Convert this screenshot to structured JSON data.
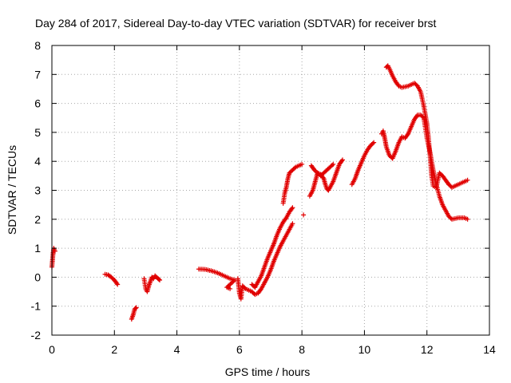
{
  "chart_data": {
    "type": "scatter",
    "title": "Day 284 of 2017, Sidereal Day-to-day VTEC variation (SDTVAR) for receiver brst",
    "xlabel": "GPS time / hours",
    "ylabel": "SDTVAR / TECUs",
    "xlim": [
      0,
      14
    ],
    "ylim": [
      -2,
      8
    ],
    "xticks": [
      "0",
      "2",
      "4",
      "6",
      "8",
      "10",
      "12",
      "14"
    ],
    "yticks": [
      "-2",
      "-1",
      "0",
      "1",
      "2",
      "3",
      "4",
      "5",
      "6",
      "7",
      "8"
    ],
    "grid": true,
    "grid_style": "dotted",
    "marker": "+",
    "color": "#e00000",
    "series": [
      {
        "segments": [
          [
            [
              0.0,
              0.35
            ],
            [
              0.02,
              0.6
            ],
            [
              0.04,
              0.85
            ],
            [
              0.06,
              1.0
            ],
            [
              0.08,
              0.95
            ],
            [
              0.1,
              0.9
            ]
          ],
          [
            [
              1.7,
              0.1
            ],
            [
              1.8,
              0.08
            ],
            [
              1.9,
              0.0
            ],
            [
              2.0,
              -0.1
            ],
            [
              2.1,
              -0.25
            ]
          ],
          [
            [
              2.55,
              -1.45
            ],
            [
              2.6,
              -1.3
            ],
            [
              2.65,
              -1.1
            ],
            [
              2.7,
              -1.05
            ]
          ],
          [
            [
              2.95,
              -0.05
            ],
            [
              3.0,
              -0.4
            ],
            [
              3.05,
              -0.5
            ],
            [
              3.1,
              -0.3
            ],
            [
              3.15,
              -0.15
            ],
            [
              3.2,
              0.0
            ],
            [
              3.25,
              -0.05
            ],
            [
              3.3,
              0.05
            ],
            [
              3.4,
              -0.05
            ],
            [
              3.45,
              -0.1
            ]
          ],
          [
            [
              4.7,
              0.28
            ],
            [
              4.9,
              0.27
            ],
            [
              5.1,
              0.22
            ],
            [
              5.3,
              0.15
            ],
            [
              5.5,
              0.05
            ],
            [
              5.7,
              -0.05
            ],
            [
              5.85,
              -0.1
            ],
            [
              5.6,
              -0.35
            ],
            [
              5.7,
              -0.4
            ]
          ],
          [
            [
              5.95,
              -0.05
            ],
            [
              6.0,
              -0.55
            ],
            [
              6.05,
              -0.75
            ],
            [
              6.1,
              -0.3
            ],
            [
              6.2,
              -0.4
            ],
            [
              6.3,
              -0.45
            ],
            [
              6.4,
              -0.5
            ],
            [
              6.5,
              -0.6
            ],
            [
              6.6,
              -0.55
            ],
            [
              6.7,
              -0.4
            ],
            [
              6.8,
              -0.2
            ],
            [
              6.9,
              0.0
            ],
            [
              7.0,
              0.25
            ],
            [
              7.1,
              0.55
            ],
            [
              7.2,
              0.8
            ],
            [
              7.3,
              1.05
            ],
            [
              7.4,
              1.25
            ],
            [
              7.5,
              1.45
            ],
            [
              7.6,
              1.65
            ],
            [
              7.7,
              1.85
            ]
          ],
          [
            [
              6.4,
              -0.25
            ],
            [
              6.5,
              -0.35
            ],
            [
              6.6,
              -0.15
            ],
            [
              6.7,
              0.05
            ],
            [
              6.8,
              0.35
            ],
            [
              6.9,
              0.65
            ],
            [
              7.0,
              0.9
            ],
            [
              7.1,
              1.15
            ],
            [
              7.2,
              1.45
            ],
            [
              7.3,
              1.7
            ],
            [
              7.4,
              1.9
            ],
            [
              7.5,
              2.05
            ],
            [
              7.6,
              2.25
            ],
            [
              7.7,
              2.4
            ]
          ],
          [
            [
              7.4,
              2.55
            ],
            [
              7.45,
              2.9
            ],
            [
              7.5,
              3.1
            ],
            [
              7.55,
              3.4
            ],
            [
              7.6,
              3.6
            ],
            [
              7.7,
              3.7
            ],
            [
              7.8,
              3.8
            ],
            [
              7.9,
              3.85
            ],
            [
              8.0,
              3.9
            ]
          ],
          [
            [
              8.05,
              2.15
            ]
          ],
          [
            [
              8.25,
              2.8
            ],
            [
              8.3,
              2.9
            ],
            [
              8.35,
              3.0
            ],
            [
              8.4,
              3.2
            ],
            [
              8.45,
              3.4
            ],
            [
              8.5,
              3.6
            ],
            [
              8.6,
              3.55
            ],
            [
              8.7,
              3.4
            ],
            [
              8.75,
              3.2
            ],
            [
              8.8,
              3.05
            ],
            [
              8.85,
              3.0
            ],
            [
              8.9,
              3.1
            ],
            [
              9.0,
              3.3
            ],
            [
              9.1,
              3.6
            ],
            [
              9.2,
              3.9
            ],
            [
              9.3,
              4.05
            ]
          ],
          [
            [
              8.3,
              3.85
            ],
            [
              8.4,
              3.7
            ],
            [
              8.6,
              3.5
            ],
            [
              8.7,
              3.6
            ],
            [
              8.8,
              3.7
            ],
            [
              8.9,
              3.8
            ],
            [
              9.0,
              3.9
            ]
          ],
          [
            [
              9.6,
              3.2
            ],
            [
              9.7,
              3.4
            ],
            [
              9.8,
              3.7
            ],
            [
              9.9,
              3.95
            ],
            [
              10.0,
              4.2
            ],
            [
              10.1,
              4.4
            ],
            [
              10.2,
              4.55
            ],
            [
              10.3,
              4.65
            ]
          ],
          [
            [
              10.55,
              4.95
            ],
            [
              10.6,
              5.05
            ],
            [
              10.65,
              4.8
            ],
            [
              10.7,
              4.5
            ],
            [
              10.8,
              4.2
            ],
            [
              10.9,
              4.1
            ],
            [
              11.0,
              4.35
            ],
            [
              11.1,
              4.65
            ],
            [
              11.2,
              4.85
            ],
            [
              11.3,
              4.8
            ],
            [
              11.4,
              4.95
            ],
            [
              11.5,
              5.2
            ],
            [
              11.6,
              5.45
            ],
            [
              11.7,
              5.6
            ],
            [
              11.8,
              5.6
            ],
            [
              11.9,
              5.5
            ],
            [
              12.0,
              4.8
            ],
            [
              12.1,
              4.3
            ],
            [
              12.2,
              3.7
            ],
            [
              12.3,
              3.2
            ],
            [
              12.4,
              2.8
            ],
            [
              12.5,
              2.5
            ],
            [
              12.6,
              2.3
            ],
            [
              12.7,
              2.1
            ],
            [
              12.8,
              2.0
            ],
            [
              13.0,
              2.05
            ],
            [
              13.2,
              2.05
            ],
            [
              13.3,
              2.0
            ]
          ],
          [
            [
              10.7,
              7.25
            ],
            [
              10.75,
              7.3
            ],
            [
              10.8,
              7.2
            ],
            [
              10.9,
              6.95
            ],
            [
              11.0,
              6.75
            ],
            [
              11.1,
              6.6
            ],
            [
              11.2,
              6.55
            ],
            [
              11.4,
              6.6
            ],
            [
              11.5,
              6.65
            ],
            [
              11.6,
              6.7
            ],
            [
              11.7,
              6.6
            ],
            [
              11.8,
              6.4
            ],
            [
              11.9,
              5.9
            ],
            [
              12.0,
              5.3
            ],
            [
              12.05,
              4.8
            ],
            [
              12.1,
              4.2
            ],
            [
              12.15,
              3.5
            ],
            [
              12.2,
              3.15
            ],
            [
              12.3,
              3.1
            ],
            [
              12.4,
              3.6
            ],
            [
              12.5,
              3.5
            ],
            [
              12.6,
              3.35
            ],
            [
              12.7,
              3.2
            ],
            [
              12.8,
              3.1
            ],
            [
              12.9,
              3.15
            ],
            [
              13.0,
              3.2
            ],
            [
              13.1,
              3.25
            ],
            [
              13.2,
              3.3
            ],
            [
              13.3,
              3.35
            ]
          ]
        ]
      }
    ]
  }
}
